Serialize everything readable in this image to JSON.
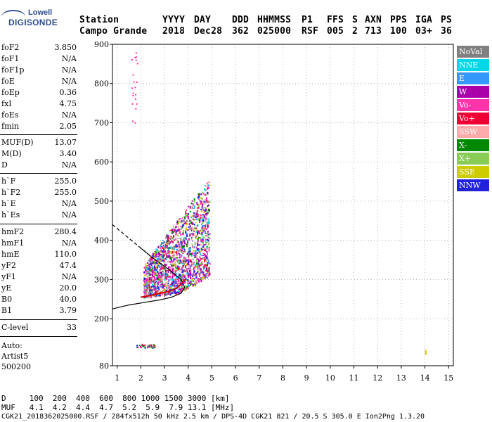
{
  "logo": {
    "line1": "Lowell",
    "line2": "DIGISONDE"
  },
  "header": {
    "row1": [
      "Station",
      "YYYY",
      "DAY",
      "DDD",
      "HHMMSS",
      "P1",
      "FFS",
      "S",
      "AXN",
      "PPS",
      "IGA",
      "PS"
    ],
    "row2": [
      "Campo Grande",
      "2018",
      "Dec28",
      "362",
      "025000",
      "RSF",
      "005",
      "2",
      "713",
      "100",
      "03+",
      "36"
    ]
  },
  "params": [
    {
      "name": "foF2",
      "value": "3.850"
    },
    {
      "name": "foF1",
      "value": "N/A"
    },
    {
      "name": "foF1p",
      "value": "N/A"
    },
    {
      "name": "foE",
      "value": "N/A"
    },
    {
      "name": "foEp",
      "value": "0.36"
    },
    {
      "name": "fxI",
      "value": "4.75"
    },
    {
      "name": "foEs",
      "value": "N/A"
    },
    {
      "name": "fmin",
      "value": "2.05"
    },
    {
      "name": "MUF(D)",
      "value": "13.07"
    },
    {
      "name": "M(D)",
      "value": "3.40"
    },
    {
      "name": "D",
      "value": "N/A"
    },
    {
      "name": "h`F",
      "value": "255.0"
    },
    {
      "name": "h`F2",
      "value": "255.0"
    },
    {
      "name": "h`E",
      "value": "N/A"
    },
    {
      "name": "h`Es",
      "value": "N/A"
    },
    {
      "name": "hmF2",
      "value": "280.4"
    },
    {
      "name": "hmF1",
      "value": "N/A"
    },
    {
      "name": "hmE",
      "value": "110.0"
    },
    {
      "name": "yF2",
      "value": "47.4"
    },
    {
      "name": "yF1",
      "value": "N/A"
    },
    {
      "name": "yE",
      "value": "20.0"
    },
    {
      "name": "B0",
      "value": "40.0"
    },
    {
      "name": "B1",
      "value": "3.79"
    }
  ],
  "clevel": {
    "name": "C-level",
    "value": "33"
  },
  "auto": {
    "line1": "Auto:",
    "line2": "Artist5",
    "line3": "500200"
  },
  "legend": [
    {
      "label": "NoVal",
      "color": "#808080"
    },
    {
      "label": "NNE",
      "color": "#00d8e8"
    },
    {
      "label": "E",
      "color": "#3399ff"
    },
    {
      "label": "W",
      "color": "#aa00aa"
    },
    {
      "label": "Vo-",
      "color": "#ff33aa"
    },
    {
      "label": "Vo+",
      "color": "#ee0033"
    },
    {
      "label": "SSW",
      "color": "#ffaaaa"
    },
    {
      "label": "X-",
      "color": "#008800"
    },
    {
      "label": "X+",
      "color": "#88cc55"
    },
    {
      "label": "SSE",
      "color": "#cccc00"
    },
    {
      "label": "NNW",
      "color": "#2222dd"
    }
  ],
  "footer": {
    "d_line": "D     100  200  400  600  800 1000 1500 3000 [km]",
    "muf_line": "MUF   4.1  4.2  4.4  4.7  5.2  5.9  7.9 13.1 [MHz]",
    "info_line": "CGK21_2018362025000.RSF / 284fx512h 50 kHz 2.5 km / DPS-4D CGK21 821 / 20.5 S 305.0 E Ion2Png 1.3.20"
  },
  "chart_data": {
    "type": "scatter",
    "title": "",
    "xlabel": "",
    "ylabel": "",
    "xlim": [
      0.8,
      15.2
    ],
    "ylim": [
      80,
      900
    ],
    "x_ticks": [
      1,
      2,
      3,
      4,
      5,
      6,
      7,
      8,
      9,
      10,
      11,
      12,
      13,
      14,
      15
    ],
    "y_ticks": [
      80,
      200,
      300,
      400,
      500,
      600,
      700,
      800,
      900
    ],
    "traces_f2": {
      "x_range": [
        1.9,
        4.9
      ],
      "height_range": [
        255,
        690
      ]
    },
    "es_echo": {
      "x_range": [
        1.8,
        2.6
      ],
      "height": 130
    },
    "noise_echo": {
      "x": 14.0,
      "height_range": [
        110,
        125
      ]
    },
    "series": [
      {
        "name": "profile",
        "x": [
          0.8,
          1.5,
          2.2,
          2.8,
          3.3,
          3.7,
          3.85,
          3.7,
          3.2,
          2.5,
          2.0
        ],
        "y": [
          225,
          235,
          242,
          248,
          255,
          265,
          280,
          300,
          325,
          355,
          380
        ]
      },
      {
        "name": "trace",
        "x": [
          2.0,
          2.3,
          2.6,
          2.9,
          3.2,
          3.5,
          3.7,
          3.85
        ],
        "y": [
          255,
          258,
          262,
          266,
          270,
          278,
          288,
          300
        ]
      },
      {
        "name": "extrap",
        "x": [
          0.8,
          1.2,
          1.6,
          2.0,
          2.4
        ],
        "y": [
          440,
          420,
          400,
          380,
          360
        ]
      }
    ]
  }
}
